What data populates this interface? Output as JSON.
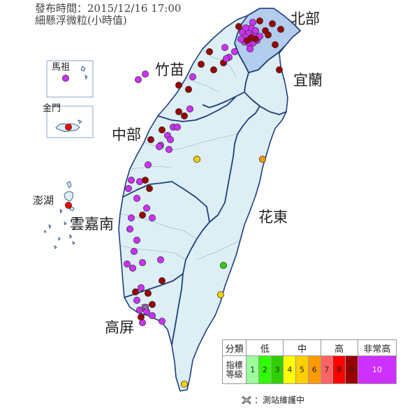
{
  "header": {
    "publish_time": "發布時間：2015/12/16 17:00",
    "subtitle": "細懸浮微粒(小時值)"
  },
  "regions": {
    "north": "北部",
    "zhumiao": "竹苗",
    "yilan": "宜蘭",
    "central": "中部",
    "yunjianan": "雲嘉南",
    "hualien": "花東",
    "kaoping": "高屏",
    "penghu": "澎湖",
    "matsu": "馬祖",
    "kinmen": "金門"
  },
  "colors": {
    "level_1": "#9cff9c",
    "level_2": "#31ff00",
    "level_3": "#31cf00",
    "level_4": "#ffff00",
    "level_5": "#ffcf00",
    "level_6": "#ff9a00",
    "level_7": "#ff6464",
    "level_8": "#ff0000",
    "level_9": "#990000",
    "level_10": "#ce30ff",
    "north_region_fill": "#b4cdee",
    "land_fill": "#ddeef4",
    "boundary": "#1c3f7a"
  },
  "legend": {
    "col_category": "分類",
    "col_low": "低",
    "col_mid": "中",
    "col_high": "高",
    "col_very_high": "非常高",
    "row_label": "指標等級",
    "levels": [
      "1",
      "2",
      "3",
      "4",
      "5",
      "6",
      "7",
      "8",
      "9",
      "10"
    ]
  },
  "maintenance_note": "：測站維護中",
  "stations": [
    {
      "level": 10
    },
    {
      "level": 10
    },
    {
      "level": 10
    },
    {
      "level": 10
    },
    {
      "level": 10
    },
    {
      "level": 10
    },
    {
      "level": 10
    },
    {
      "level": 10
    },
    {
      "level": 10
    },
    {
      "level": 10
    },
    {
      "level": 10
    },
    {
      "level": 10
    },
    {
      "level": 10
    },
    {
      "level": 10
    },
    {
      "level": 10
    },
    {
      "level": 9
    },
    {
      "level": 9
    },
    {
      "level": 9
    },
    {
      "level": 9
    },
    {
      "level": 9
    },
    {
      "level": 9
    },
    {
      "level": 9
    },
    {
      "level": 9
    },
    {
      "level": 9
    },
    {
      "level": 9
    },
    {
      "level": 10
    },
    {
      "level": 10
    },
    {
      "level": 10
    },
    {
      "level": 9
    },
    {
      "level": 9
    },
    {
      "level": 9
    },
    {
      "level": 9
    },
    {
      "level": 10
    },
    {
      "level": 9
    },
    {
      "level": 9
    },
    {
      "level": 9
    },
    {
      "level": 10
    },
    {
      "level": 9
    },
    {
      "level": 10
    },
    {
      "level": 10
    },
    {
      "level": 10
    },
    {
      "level": 10
    },
    {
      "level": 9
    },
    {
      "level": 10
    },
    {
      "level": 10
    },
    {
      "level": 10
    },
    {
      "level": 9
    },
    {
      "level": 10
    },
    {
      "level": 10
    },
    {
      "level": 9
    },
    {
      "level": 10
    },
    {
      "level": 10
    },
    {
      "level": 10
    },
    {
      "level": 9
    },
    {
      "level": 10
    },
    {
      "level": 10
    },
    {
      "level": 10
    },
    {
      "level": 10
    },
    {
      "level": 10
    },
    {
      "level": 10
    },
    {
      "level": 10
    },
    {
      "level": 10
    },
    {
      "level": 10
    },
    {
      "level": 9
    },
    {
      "level": 10
    },
    {
      "level": 9
    },
    {
      "level": 10
    },
    {
      "level": 10
    },
    {
      "level": 10
    },
    {
      "level": 10
    },
    {
      "level": 10
    },
    {
      "level": 10
    },
    {
      "level": 9
    },
    {
      "level": 9
    },
    {
      "level": 10
    },
    {
      "level": 9
    },
    {
      "level": 10
    },
    {
      "level": 10
    },
    {
      "level": 9
    },
    {
      "level": 10
    },
    {
      "level": 10
    },
    {
      "level": 9
    },
    {
      "level": 5
    },
    {
      "level": 6
    },
    {
      "level": 3
    },
    {
      "level": 5
    },
    {
      "level": 5
    },
    {
      "level": 10
    },
    {
      "level": 8
    },
    {
      "level": 8
    }
  ]
}
